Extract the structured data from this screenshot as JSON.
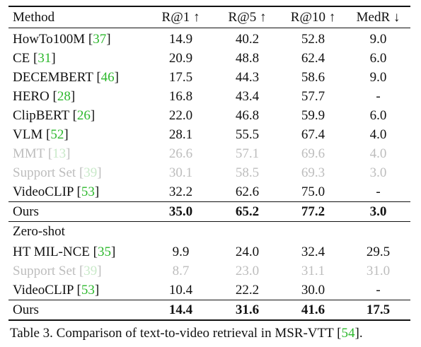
{
  "header": {
    "method": "Method",
    "r1": "R@1 ↑",
    "r5": "R@5 ↑",
    "r10": "R@10 ↑",
    "medr": "MedR ↓"
  },
  "rows": [
    {
      "name": "HowTo100M",
      "ref": "37",
      "r1": "14.9",
      "r5": "40.2",
      "r10": "52.8",
      "medr": "9.0"
    },
    {
      "name": "CE",
      "ref": "31",
      "r1": "20.9",
      "r5": "48.8",
      "r10": "62.4",
      "medr": "6.0"
    },
    {
      "name": "DECEMBERT",
      "ref": "46",
      "r1": "17.5",
      "r5": "44.3",
      "r10": "58.6",
      "medr": "9.0"
    },
    {
      "name": "HERO",
      "ref": "28",
      "r1": "16.8",
      "r5": "43.4",
      "r10": "57.7",
      "medr": "-"
    },
    {
      "name": "ClipBERT",
      "ref": "26",
      "r1": "22.0",
      "r5": "46.8",
      "r10": "59.9",
      "medr": "6.0"
    },
    {
      "name": "VLM",
      "ref": "52",
      "r1": "28.1",
      "r5": "55.5",
      "r10": "67.4",
      "medr": "4.0"
    },
    {
      "name": "MMT",
      "ref": "13",
      "r1": "26.6",
      "r5": "57.1",
      "r10": "69.6",
      "medr": "4.0"
    },
    {
      "name": "Support Set",
      "ref": "39",
      "r1": "30.1",
      "r5": "58.5",
      "r10": "69.3",
      "medr": "3.0"
    },
    {
      "name": "VideoCLIP",
      "ref": "53",
      "r1": "32.2",
      "r5": "62.6",
      "r10": "75.0",
      "medr": "-"
    },
    {
      "name": "Ours",
      "r1": "35.0",
      "r5": "65.2",
      "r10": "77.2",
      "medr": "3.0"
    }
  ],
  "zero_shot_title": "Zero-shot",
  "zero_shot_rows": [
    {
      "name": "HT MIL-NCE",
      "ref": "35",
      "r1": "9.9",
      "r5": "24.0",
      "r10": "32.4",
      "medr": "29.5"
    },
    {
      "name": "Support Set",
      "ref": "39",
      "r1": "8.7",
      "r5": "23.0",
      "r10": "31.1",
      "medr": "31.0"
    },
    {
      "name": "VideoCLIP",
      "ref": "53",
      "r1": "10.4",
      "r5": "22.2",
      "r10": "30.0",
      "medr": "-"
    },
    {
      "name": "Ours",
      "r1": "14.4",
      "r5": "31.6",
      "r10": "41.6",
      "medr": "17.5"
    }
  ],
  "caption": {
    "text": "Table 3. Comparison of text-to-video retrieval in MSR-VTT ",
    "ref": "54",
    "end": "."
  },
  "colors": {
    "citation": "#2db82d",
    "faded_text": "#bdbdbd"
  }
}
